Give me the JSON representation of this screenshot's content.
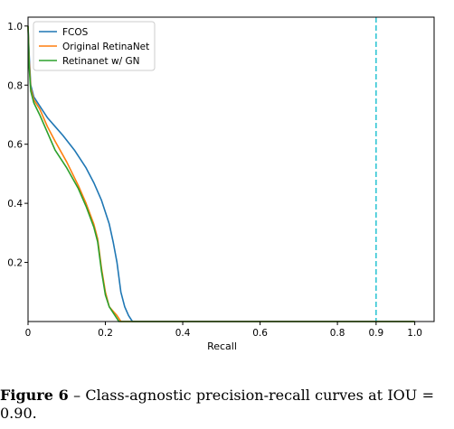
{
  "chart_data": {
    "type": "line",
    "title": "",
    "xlabel": "Recall",
    "ylabel": "",
    "xlim": [
      0,
      1.05
    ],
    "ylim": [
      0,
      1.03
    ],
    "x_ticks": [
      0,
      0.2,
      0.4,
      0.6,
      0.8,
      0.9,
      1.0
    ],
    "x_tick_labels": [
      "0",
      "0.2",
      "0.4",
      "0.6",
      "0.8",
      "0.9",
      "1.0"
    ],
    "y_ticks": [
      0.2,
      0.4,
      0.6,
      0.8,
      1.0
    ],
    "y_tick_labels": [
      "0.2",
      "0.4",
      "0.6",
      "0.8",
      "1.0"
    ],
    "grid": false,
    "legend_position": "top-left",
    "reference_line": {
      "x": 0.9,
      "style": "dashed",
      "color": "#17becf"
    },
    "series": [
      {
        "name": "FCOS",
        "color": "#1f77b4",
        "points": [
          [
            0,
            1.0
          ],
          [
            0.003,
            0.9
          ],
          [
            0.007,
            0.8
          ],
          [
            0.015,
            0.76
          ],
          [
            0.03,
            0.73
          ],
          [
            0.05,
            0.69
          ],
          [
            0.07,
            0.66
          ],
          [
            0.09,
            0.63
          ],
          [
            0.12,
            0.58
          ],
          [
            0.15,
            0.52
          ],
          [
            0.17,
            0.47
          ],
          [
            0.19,
            0.41
          ],
          [
            0.21,
            0.33
          ],
          [
            0.22,
            0.27
          ],
          [
            0.23,
            0.2
          ],
          [
            0.24,
            0.1
          ],
          [
            0.25,
            0.05
          ],
          [
            0.26,
            0.02
          ],
          [
            0.27,
            0.0
          ],
          [
            1.0,
            0.0
          ]
        ]
      },
      {
        "name": "Original RetinaNet",
        "color": "#ff7f0e",
        "points": [
          [
            0,
            1.0
          ],
          [
            0.003,
            0.88
          ],
          [
            0.007,
            0.79
          ],
          [
            0.015,
            0.75
          ],
          [
            0.03,
            0.72
          ],
          [
            0.05,
            0.66
          ],
          [
            0.07,
            0.61
          ],
          [
            0.1,
            0.54
          ],
          [
            0.13,
            0.46
          ],
          [
            0.15,
            0.4
          ],
          [
            0.17,
            0.33
          ],
          [
            0.18,
            0.28
          ],
          [
            0.19,
            0.18
          ],
          [
            0.2,
            0.1
          ],
          [
            0.21,
            0.05
          ],
          [
            0.23,
            0.02
          ],
          [
            0.24,
            0.0
          ],
          [
            1.0,
            0.0
          ]
        ]
      },
      {
        "name": "Retinanet w/ GN",
        "color": "#2ca02c",
        "points": [
          [
            0,
            1.0
          ],
          [
            0.003,
            0.86
          ],
          [
            0.007,
            0.78
          ],
          [
            0.015,
            0.74
          ],
          [
            0.03,
            0.7
          ],
          [
            0.05,
            0.64
          ],
          [
            0.07,
            0.58
          ],
          [
            0.1,
            0.52
          ],
          [
            0.13,
            0.45
          ],
          [
            0.15,
            0.39
          ],
          [
            0.17,
            0.32
          ],
          [
            0.18,
            0.27
          ],
          [
            0.19,
            0.17
          ],
          [
            0.2,
            0.09
          ],
          [
            0.21,
            0.05
          ],
          [
            0.22,
            0.03
          ],
          [
            0.23,
            0.01
          ],
          [
            0.235,
            0.0
          ],
          [
            1.0,
            0.0
          ]
        ]
      }
    ]
  },
  "caption": {
    "label": "Figure 6",
    "text": " – Class-agnostic precision-recall curves at IOU = 0.90."
  }
}
